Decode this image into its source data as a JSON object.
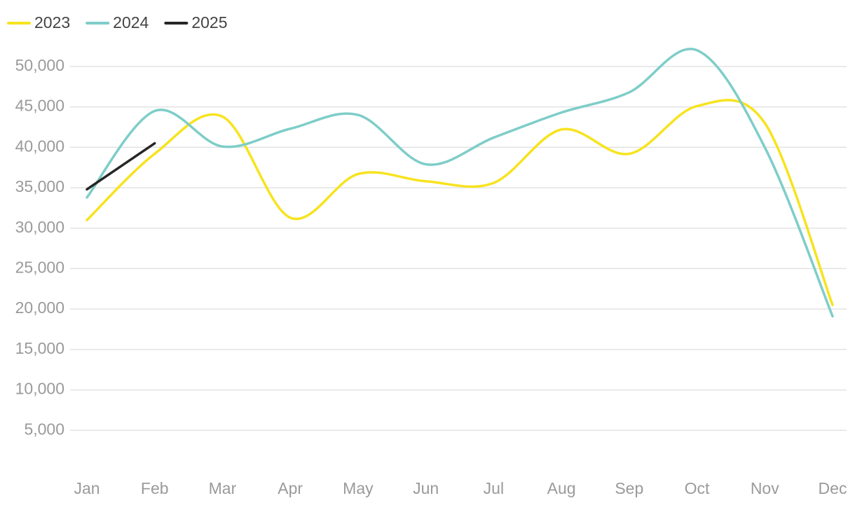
{
  "chart_data": {
    "type": "line",
    "categories": [
      "Jan",
      "Feb",
      "Mar",
      "Apr",
      "May",
      "Jun",
      "Jul",
      "Aug",
      "Sep",
      "Oct",
      "Nov",
      "Dec"
    ],
    "series": [
      {
        "name": "2023",
        "color": "#f7e31e",
        "values": [
          31000,
          39200,
          43800,
          31300,
          36700,
          35800,
          35600,
          42200,
          39200,
          45100,
          43000,
          20500
        ]
      },
      {
        "name": "2024",
        "color": "#7ecdc8",
        "values": [
          33800,
          44500,
          40100,
          42300,
          44000,
          37900,
          41200,
          44300,
          46800,
          52000,
          40000,
          19100
        ]
      },
      {
        "name": "2025",
        "color": "#262626",
        "values": [
          34800,
          40500,
          null,
          null,
          null,
          null,
          null,
          null,
          null,
          null,
          null,
          null
        ]
      }
    ],
    "ylim": [
      0,
      52500
    ],
    "yticks": [
      {
        "value": 5000,
        "label": "5,000"
      },
      {
        "value": 10000,
        "label": "10,000"
      },
      {
        "value": 15000,
        "label": "15,000"
      },
      {
        "value": 20000,
        "label": "20,000"
      },
      {
        "value": 25000,
        "label": "25,000"
      },
      {
        "value": 30000,
        "label": "30,000"
      },
      {
        "value": 35000,
        "label": "35,000"
      },
      {
        "value": 40000,
        "label": "40,000"
      },
      {
        "value": 45000,
        "label": "45,000"
      },
      {
        "value": 50000,
        "label": "50,000"
      }
    ],
    "grid": true,
    "legend": "top-left"
  }
}
